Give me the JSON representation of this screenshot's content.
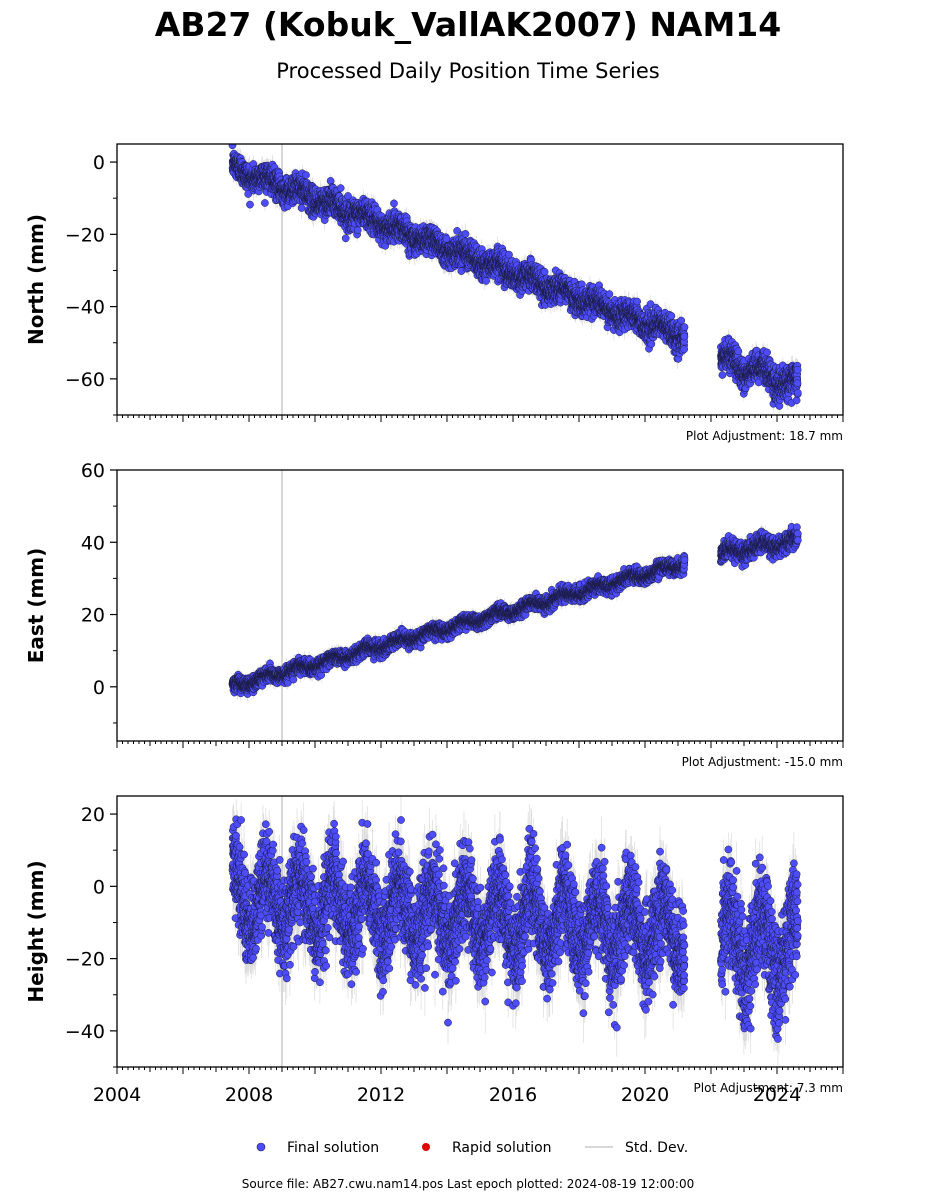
{
  "header": {
    "title": "AB27 (Kobuk_VallAK2007) NAM14",
    "subtitle": "Processed Daily Position Time Series"
  },
  "footer": {
    "source": "Source file: AB27.cwu.nam14.pos  Last epoch plotted: 2024-08-19 12:00:00"
  },
  "legend": {
    "items": [
      {
        "label": "Final solution",
        "marker": "circle",
        "color": "#4d4dff"
      },
      {
        "label": "Rapid solution",
        "marker": "circle",
        "color": "#e00000"
      },
      {
        "label": "Std. Dev.",
        "marker": "line",
        "color": "#cccccc"
      }
    ]
  },
  "colors": {
    "final_fill": "#4d4dff",
    "final_edge": "#1a1a40",
    "std_dev": "#bdbdbd",
    "equipment_line": "#cccccc"
  },
  "chart_data": [
    {
      "type": "scatter",
      "name": "north",
      "ylabel": "North (mm)",
      "ylim": [
        -70,
        5
      ],
      "yticks": [
        0,
        -20,
        -40,
        -60
      ],
      "xlim": [
        2004,
        2026
      ],
      "adjustment": "Plot Adjustment: 18.7 mm",
      "equipment_change_year": 2009.0,
      "segments": [
        {
          "start": 2007.5,
          "end": 2021.2,
          "y_start": -1.5,
          "y_end": -48.5,
          "scatter": 1.8,
          "seasonal": 1.2
        },
        {
          "start": 2022.3,
          "end": 2024.63,
          "y_start": -54.5,
          "y_end": -62.0,
          "scatter": 2.0,
          "seasonal": 2.0
        }
      ],
      "std_dev_mm": 2.0
    },
    {
      "type": "scatter",
      "name": "east",
      "ylabel": "East (mm)",
      "ylim": [
        -15,
        60
      ],
      "yticks": [
        0,
        20,
        40,
        60
      ],
      "xlim": [
        2004,
        2026
      ],
      "adjustment": "Plot Adjustment: -15.0 mm",
      "equipment_change_year": 2009.0,
      "segments": [
        {
          "start": 2007.5,
          "end": 2021.2,
          "y_start": 0.0,
          "y_end": 34.0,
          "scatter": 0.9,
          "seasonal": 0.8
        },
        {
          "start": 2022.3,
          "end": 2024.63,
          "y_start": 37.0,
          "y_end": 40.5,
          "scatter": 1.2,
          "seasonal": 1.0
        }
      ],
      "std_dev_mm": 1.5
    },
    {
      "type": "scatter",
      "name": "height",
      "ylabel": "Height (mm)",
      "ylim": [
        -50,
        25
      ],
      "yticks": [
        20,
        0,
        -20,
        -40
      ],
      "xlim": [
        2004,
        2026
      ],
      "xticks": [
        2004,
        2008,
        2012,
        2016,
        2020,
        2024
      ],
      "adjustment": "Plot Adjustment: 7.3 mm",
      "equipment_change_year": 2009.0,
      "segments": [
        {
          "start": 2007.5,
          "end": 2021.2,
          "y_start": -3.0,
          "y_end": -13.0,
          "scatter": 6.0,
          "seasonal": 8.0
        },
        {
          "start": 2022.3,
          "end": 2024.63,
          "y_start": -16.0,
          "y_end": -16.0,
          "scatter": 7.0,
          "seasonal": 9.0
        }
      ],
      "std_dev_mm": 6.0
    }
  ]
}
